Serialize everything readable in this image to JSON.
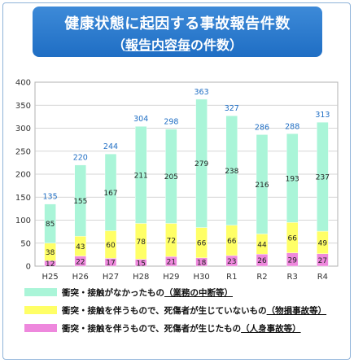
{
  "title": {
    "line1": "健康状態に起因する事故報告件数",
    "line2_prefix": "（",
    "line2_emphasis": "報告内容毎",
    "line2_suffix": "の件数）"
  },
  "colors": {
    "title_bg": "#2f7fd0",
    "no_contact": "#aaf5d8",
    "property_damage": "#ffff66",
    "injury": "#ee88dd",
    "total_label": "#1f6ec4",
    "grid": "#c8c8c8"
  },
  "legend": [
    {
      "key": "no_contact",
      "prefix": "衝突・接触がなかったもの",
      "emphasis": "（業務の中断等）"
    },
    {
      "key": "property_damage",
      "prefix": "衝突・接触を伴うもので、死傷者が生じていないもの",
      "emphasis": "（物損事故等）"
    },
    {
      "key": "injury",
      "prefix": "衝突・接触を伴うもので、死傷者が生じたもの",
      "emphasis": "（人身事故等）"
    }
  ],
  "chart_data": {
    "type": "bar",
    "stacked": true,
    "categories": [
      "H25",
      "H26",
      "H27",
      "H28",
      "H29",
      "H30",
      "R1",
      "R2",
      "R3",
      "R4"
    ],
    "series": [
      {
        "name": "衝突・接触を伴うもので、死傷者が生じたもの（人身事故等）",
        "key": "injury",
        "values": [
          12,
          22,
          17,
          15,
          21,
          18,
          23,
          26,
          29,
          27
        ]
      },
      {
        "name": "衝突・接触を伴うもので、死傷者が生じていないもの（物損事故等）",
        "key": "property_damage",
        "values": [
          38,
          43,
          60,
          78,
          72,
          66,
          66,
          44,
          66,
          49
        ]
      },
      {
        "name": "衝突・接触がなかったもの（業務の中断等）",
        "key": "no_contact",
        "values": [
          85,
          155,
          167,
          211,
          205,
          279,
          238,
          216,
          193,
          237
        ]
      }
    ],
    "totals": [
      135,
      220,
      244,
      304,
      298,
      363,
      327,
      286,
      288,
      313
    ],
    "ylim": [
      0,
      400
    ],
    "yticks": [
      0,
      50,
      100,
      150,
      200,
      250,
      300,
      350,
      400
    ],
    "grid": true,
    "legend_position": "bottom"
  }
}
